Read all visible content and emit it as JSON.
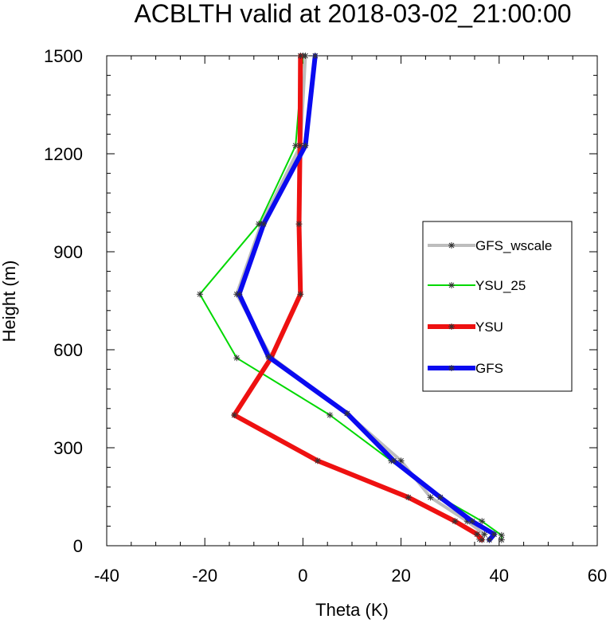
{
  "chart_data": {
    "type": "line",
    "title": "ACBLTH valid at 2018-03-02_21:00:00",
    "xlabel": "Theta (K)",
    "ylabel": "Height (m)",
    "xlim": [
      -40,
      60
    ],
    "ylim": [
      0,
      1500
    ],
    "xticks": [
      -40,
      -20,
      0,
      20,
      40,
      60
    ],
    "yticks": [
      0,
      300,
      600,
      900,
      1200,
      1500
    ],
    "x_tick_labels": [
      "-40",
      "-20",
      "0",
      "20",
      "40",
      "60"
    ],
    "y_tick_labels": [
      "0",
      "300",
      "600",
      "900",
      "1200",
      "1500"
    ],
    "grid": false,
    "legend_position": "right",
    "series": [
      {
        "name": "GFS_wscale",
        "color": "#bdbdbd",
        "line_width": 4,
        "marker": "asterisk",
        "points": [
          [
            36,
            20
          ],
          [
            37,
            35
          ],
          [
            33.5,
            75
          ],
          [
            26,
            148
          ],
          [
            20,
            260
          ],
          [
            9,
            405
          ],
          [
            -6.5,
            578
          ],
          [
            -13.5,
            770
          ],
          [
            -8.5,
            985
          ],
          [
            -0.5,
            1225
          ],
          [
            0.5,
            1500
          ]
        ]
      },
      {
        "name": "YSU_25",
        "color": "#00d800",
        "line_width": 2,
        "marker": "asterisk",
        "points": [
          [
            40.5,
            18
          ],
          [
            40.5,
            32
          ],
          [
            36.5,
            75
          ],
          [
            28,
            148
          ],
          [
            18,
            260
          ],
          [
            5.5,
            400
          ],
          [
            -13.5,
            575
          ],
          [
            -21,
            770
          ],
          [
            -9,
            985
          ],
          [
            -1.5,
            1225
          ],
          [
            0,
            1500
          ]
        ]
      },
      {
        "name": "YSU",
        "color": "#ee1111",
        "line_width": 6,
        "marker": "asterisk",
        "points": [
          [
            36.5,
            18
          ],
          [
            35.5,
            35
          ],
          [
            31,
            75
          ],
          [
            21.5,
            148
          ],
          [
            3,
            260
          ],
          [
            -14,
            400
          ],
          [
            -6.5,
            575
          ],
          [
            -0.5,
            770
          ],
          [
            -0.8,
            985
          ],
          [
            -0.6,
            1225
          ],
          [
            -0.5,
            1500
          ]
        ]
      },
      {
        "name": "GFS",
        "color": "#0a0af0",
        "line_width": 6,
        "marker": "asterisk",
        "points": [
          [
            38,
            18
          ],
          [
            39,
            35
          ],
          [
            34.5,
            75
          ],
          [
            28,
            148
          ],
          [
            18.5,
            260
          ],
          [
            9,
            405
          ],
          [
            -7,
            578
          ],
          [
            -13,
            770
          ],
          [
            -8,
            985
          ],
          [
            0.5,
            1225
          ],
          [
            2.5,
            1500
          ]
        ]
      }
    ]
  }
}
